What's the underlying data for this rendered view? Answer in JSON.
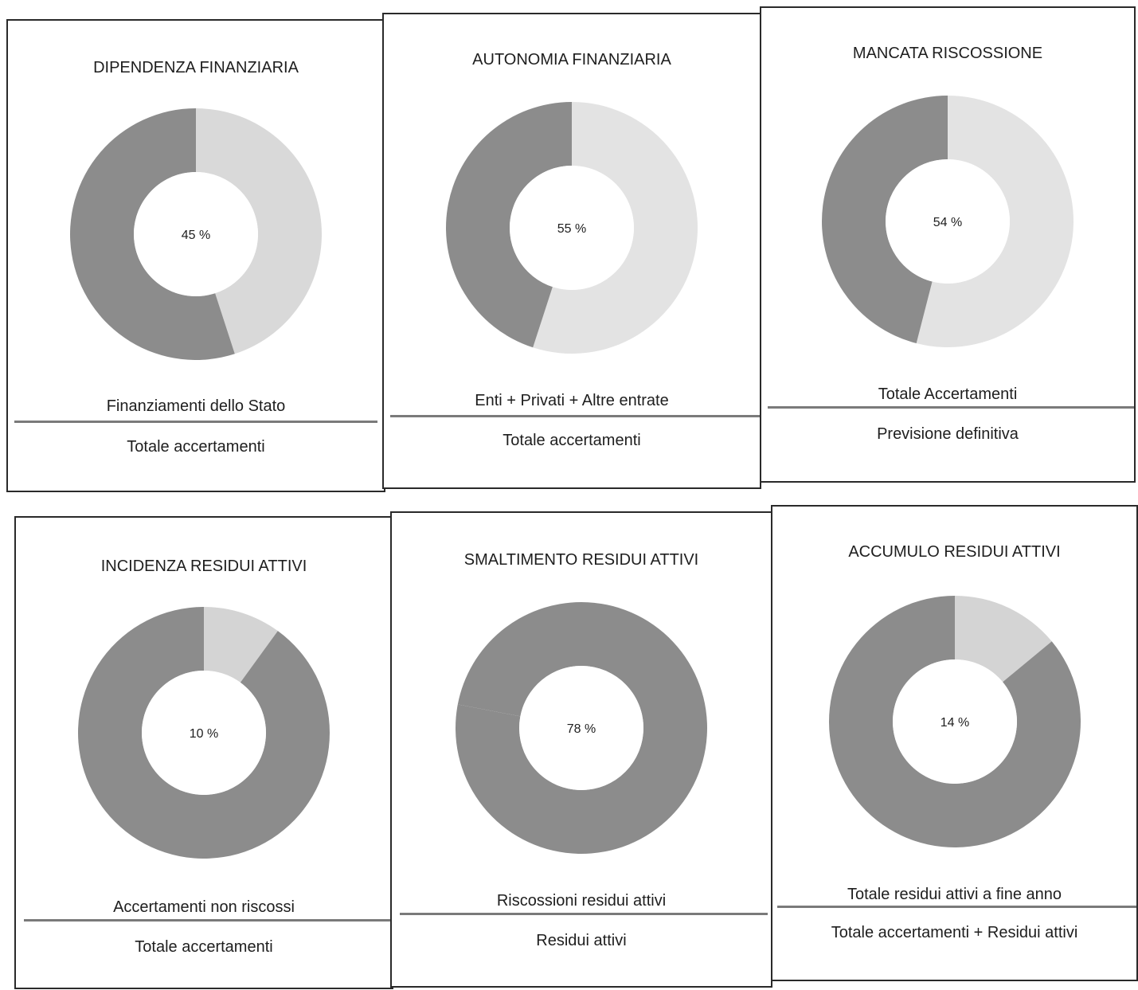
{
  "colors": {
    "dark": "#8c8c8c",
    "light": "#d9d9d9",
    "hole": "#ffffff"
  },
  "chart_data": [
    {
      "type": "pie",
      "title": "DIPENDENZA FINANZIARIA",
      "value_label": "45 %",
      "values": [
        45,
        55
      ],
      "highlight_color": "#d9d9d9",
      "rest_color": "#8c8c8c",
      "numerator": "Finanziamenti dello Stato",
      "denominator": "Totale accertamenti"
    },
    {
      "type": "pie",
      "title": "AUTONOMIA FINANZIARIA",
      "value_label": "55 %",
      "values": [
        55,
        45
      ],
      "highlight_color": "#e3e3e3",
      "rest_color": "#8c8c8c",
      "numerator": "Enti + Privati + Altre entrate",
      "denominator": "Totale accertamenti"
    },
    {
      "type": "pie",
      "title": "MANCATA RISCOSSIONE",
      "value_label": "54 %",
      "values": [
        54,
        46
      ],
      "highlight_color": "#e3e3e3",
      "rest_color": "#8c8c8c",
      "numerator": "Totale Accertamenti",
      "denominator": "Previsione definitiva"
    },
    {
      "type": "pie",
      "title": "INCIDENZA RESIDUI ATTIVI",
      "value_label": "10 %",
      "values": [
        10,
        90
      ],
      "highlight_color": "#d4d4d4",
      "rest_color": "#8c8c8c",
      "numerator": "Accertamenti non riscossi",
      "denominator": "Totale accertamenti"
    },
    {
      "type": "pie",
      "title": "SMALTIMENTO RESIDUI ATTIVI",
      "value_label": "78 %",
      "values": [
        78,
        22
      ],
      "highlight_color": "#8c8c8c",
      "rest_color": "#8c8c8c",
      "numerator": "Riscossioni residui attivi",
      "denominator": "Residui attivi"
    },
    {
      "type": "pie",
      "title": "ACCUMULO RESIDUI ATTIVI",
      "value_label": "14 %",
      "values": [
        14,
        86
      ],
      "highlight_color": "#d4d4d4",
      "rest_color": "#8c8c8c",
      "numerator": "Totale residui attivi a fine anno",
      "denominator": "Totale accertamenti + Residui attivi"
    }
  ]
}
